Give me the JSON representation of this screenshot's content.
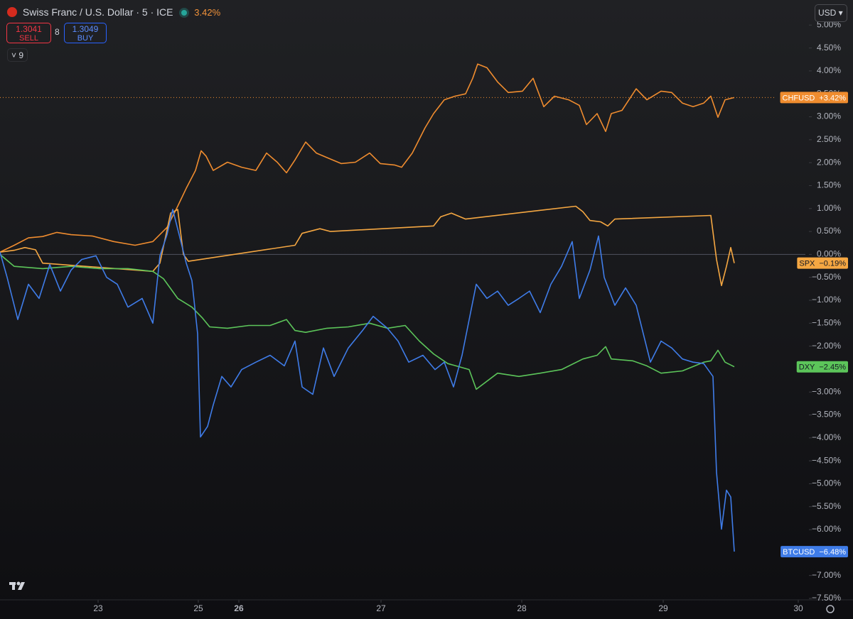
{
  "header": {
    "title": "Swiss Franc / U.S. Dollar · 5 · ICE",
    "change": "3.42%",
    "sell_price": "1.3041",
    "sell": "SELL",
    "spread": "8",
    "buy_price": "1.3049",
    "buy": "BUY",
    "indicators": "9",
    "currency": "USD"
  },
  "chart_data": {
    "type": "line",
    "xlim": [
      0,
      1133
    ],
    "xticks": [
      {
        "value": 138,
        "label": "23"
      },
      {
        "value": 279,
        "label": "25"
      },
      {
        "value": 336,
        "label": "26"
      },
      {
        "value": 536,
        "label": "27"
      },
      {
        "value": 734,
        "label": "28"
      },
      {
        "value": 933,
        "label": "29"
      },
      {
        "value": 1123,
        "label": "30"
      }
    ],
    "ylim": [
      -7.5,
      5.5
    ],
    "yticks": [
      {
        "value": 5,
        "label": "5.00%"
      },
      {
        "value": 4.5,
        "label": "4.50%"
      },
      {
        "value": 4,
        "label": "4.00%"
      },
      {
        "value": 3.5,
        "label": "3.50%"
      },
      {
        "value": 3,
        "label": "3.00%"
      },
      {
        "value": 2.5,
        "label": "2.50%"
      },
      {
        "value": 2,
        "label": "2.00%"
      },
      {
        "value": 1.5,
        "label": "1.50%"
      },
      {
        "value": 1,
        "label": "1.00%"
      },
      {
        "value": 0.5,
        "label": "0.50%"
      },
      {
        "value": 0,
        "label": "0.00%"
      },
      {
        "value": -0.5,
        "label": "−0.50%"
      },
      {
        "value": -1,
        "label": "−1.00%"
      },
      {
        "value": -1.5,
        "label": "−1.50%"
      },
      {
        "value": -2,
        "label": "−2.00%"
      },
      {
        "value": -2.5,
        "label": "−2.50%"
      },
      {
        "value": -3,
        "label": "−3.00%"
      },
      {
        "value": -3.5,
        "label": "−3.50%"
      },
      {
        "value": -4,
        "label": "−4.00%"
      },
      {
        "value": -4.5,
        "label": "−4.50%"
      },
      {
        "value": -5,
        "label": "−5.00%"
      },
      {
        "value": -5.5,
        "label": "−5.50%"
      },
      {
        "value": -6,
        "label": "−6.00%"
      },
      {
        "value": -6.5,
        "label": "−6.50%"
      },
      {
        "value": -7,
        "label": "−7.00%"
      },
      {
        "value": -7.5,
        "label": "−7.50%"
      }
    ],
    "series": [
      {
        "name": "CHFUSD",
        "color": "#ef8c2f",
        "text_color": "#ffffff",
        "last_value": 3.42,
        "last_label": "+3.42%",
        "x": [
          0,
          20,
          40,
          60,
          80,
          100,
          130,
          160,
          190,
          215,
          235,
          250,
          262,
          275,
          283,
          290,
          300,
          320,
          340,
          360,
          375,
          390,
          403,
          415,
          430,
          445,
          460,
          480,
          500,
          520,
          535,
          555,
          565,
          580,
          598,
          610,
          625,
          640,
          655,
          665,
          672,
          685,
          700,
          715,
          735,
          750,
          765,
          780,
          800,
          815,
          825,
          840,
          852,
          860,
          875,
          895,
          910,
          930,
          945,
          960,
          975,
          990,
          1000,
          1010,
          1020,
          1033
        ],
        "values": [
          0.05,
          0.2,
          0.36,
          0.39,
          0.48,
          0.43,
          0.4,
          0.28,
          0.2,
          0.28,
          0.59,
          1.05,
          1.44,
          1.83,
          2.26,
          2.14,
          1.83,
          2.01,
          1.9,
          1.83,
          2.21,
          2.01,
          1.78,
          2.06,
          2.45,
          2.21,
          2.11,
          1.98,
          2.01,
          2.21,
          1.98,
          1.95,
          1.9,
          2.21,
          2.76,
          3.07,
          3.37,
          3.45,
          3.5,
          3.84,
          4.15,
          4.07,
          3.76,
          3.53,
          3.56,
          3.84,
          3.22,
          3.45,
          3.37,
          3.25,
          2.83,
          3.07,
          2.68,
          3.07,
          3.14,
          3.61,
          3.37,
          3.56,
          3.53,
          3.3,
          3.22,
          3.3,
          3.45,
          2.99,
          3.37,
          3.42
        ]
      },
      {
        "name": "SPX",
        "color": "#f5a742",
        "text_color": "#131722",
        "last_value": -0.19,
        "last_label": "−0.19%",
        "x": [
          0,
          20,
          35,
          50,
          60,
          215,
          225,
          240,
          250,
          258,
          265,
          415,
          425,
          450,
          465,
          610,
          620,
          635,
          655,
          810,
          820,
          830,
          845,
          855,
          865,
          1000,
          1008,
          1015,
          1022,
          1028,
          1033
        ],
        "values": [
          0.05,
          0.09,
          0.15,
          0.1,
          -0.19,
          -0.37,
          -0.19,
          0.9,
          0.98,
          0.0,
          -0.15,
          0.2,
          0.46,
          0.56,
          0.5,
          0.62,
          0.82,
          0.9,
          0.77,
          1.05,
          0.93,
          0.74,
          0.71,
          0.62,
          0.77,
          0.85,
          -0.11,
          -0.68,
          -0.26,
          0.15,
          -0.19
        ]
      },
      {
        "name": "DXY",
        "color": "#5cc55a",
        "text_color": "#131722",
        "last_value": -2.45,
        "last_label": "−2.45%",
        "x": [
          0,
          20,
          60,
          100,
          140,
          180,
          215,
          230,
          250,
          270,
          285,
          295,
          320,
          350,
          380,
          403,
          415,
          430,
          460,
          490,
          520,
          545,
          570,
          590,
          610,
          630,
          660,
          670,
          700,
          730,
          760,
          790,
          820,
          840,
          852,
          860,
          890,
          910,
          930,
          960,
          990,
          1000,
          1010,
          1020,
          1033
        ],
        "values": [
          0,
          -0.26,
          -0.31,
          -0.26,
          -0.31,
          -0.31,
          -0.37,
          -0.53,
          -0.96,
          -1.15,
          -1.39,
          -1.58,
          -1.61,
          -1.55,
          -1.55,
          -1.42,
          -1.66,
          -1.7,
          -1.61,
          -1.58,
          -1.5,
          -1.61,
          -1.55,
          -1.89,
          -2.17,
          -2.38,
          -2.51,
          -2.94,
          -2.59,
          -2.66,
          -2.59,
          -2.51,
          -2.28,
          -2.2,
          -2.01,
          -2.28,
          -2.32,
          -2.43,
          -2.59,
          -2.54,
          -2.35,
          -2.32,
          -2.09,
          -2.35,
          -2.45
        ]
      },
      {
        "name": "BTCUSD",
        "color": "#3f7ce8",
        "text_color": "#ffffff",
        "last_value": -6.48,
        "last_label": "−6.48%",
        "x": [
          0,
          10,
          25,
          40,
          55,
          70,
          85,
          100,
          115,
          135,
          150,
          165,
          180,
          200,
          215,
          225,
          235,
          243,
          252,
          262,
          270,
          278,
          282,
          292,
          300,
          312,
          325,
          340,
          360,
          380,
          400,
          415,
          425,
          440,
          455,
          470,
          490,
          510,
          525,
          545,
          560,
          575,
          595,
          612,
          625,
          638,
          650,
          662,
          670,
          685,
          700,
          715,
          730,
          745,
          760,
          775,
          790,
          805,
          815,
          830,
          842,
          850,
          865,
          880,
          895,
          905,
          915,
          930,
          945,
          960,
          975,
          990,
          1003,
          1008,
          1015,
          1022,
          1028,
          1033
        ],
        "values": [
          0.05,
          -0.5,
          -1.42,
          -0.65,
          -0.96,
          -0.22,
          -0.8,
          -0.34,
          -0.11,
          -0.03,
          -0.5,
          -0.65,
          -1.15,
          -0.96,
          -1.5,
          -0.03,
          0.43,
          0.98,
          0.43,
          -0.19,
          -0.57,
          -1.73,
          -3.98,
          -3.75,
          -3.28,
          -2.66,
          -2.89,
          -2.51,
          -2.35,
          -2.2,
          -2.43,
          -1.89,
          -2.89,
          -3.05,
          -2.04,
          -2.66,
          -2.04,
          -1.66,
          -1.35,
          -1.61,
          -1.89,
          -2.35,
          -2.2,
          -2.51,
          -2.35,
          -2.89,
          -2.2,
          -1.27,
          -0.65,
          -0.96,
          -0.8,
          -1.11,
          -0.96,
          -0.8,
          -1.27,
          -0.65,
          -0.26,
          0.28,
          -0.96,
          -0.34,
          0.4,
          -0.5,
          -1.11,
          -0.73,
          -1.11,
          -1.73,
          -2.35,
          -1.89,
          -2.04,
          -2.28,
          -2.35,
          -2.38,
          -2.66,
          -4.75,
          -5.99,
          -5.14,
          -5.29,
          -6.48
        ]
      }
    ]
  }
}
